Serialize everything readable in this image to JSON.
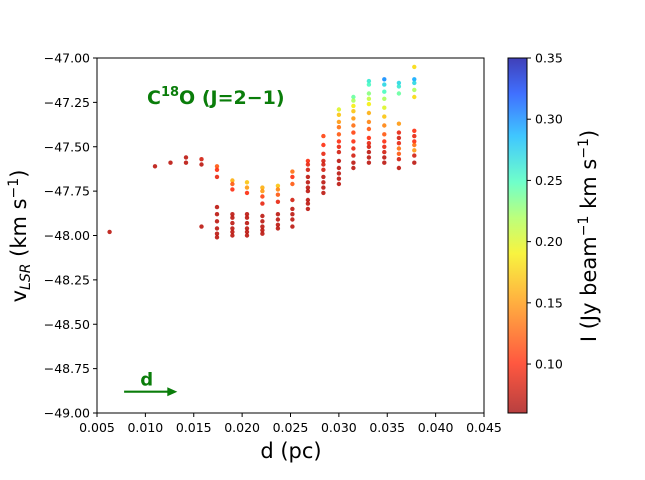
{
  "chart_data": {
    "type": "scatter",
    "xlabel": "d (pc)",
    "ylabel_main": "v",
    "ylabel_sub": "LSR",
    "ylabel_unit": " (km s",
    "ylabel_exp": "−1",
    "ylabel_close": ")",
    "xlim": [
      0.005,
      0.045
    ],
    "ylim": [
      -49.0,
      -47.0
    ],
    "x_ticks": [
      0.005,
      0.01,
      0.015,
      0.02,
      0.025,
      0.03,
      0.035,
      0.04,
      0.045
    ],
    "x_tick_labels": [
      "0.005",
      "0.010",
      "0.015",
      "0.020",
      "0.025",
      "0.030",
      "0.035",
      "0.040",
      "0.045"
    ],
    "y_ticks": [
      -49.0,
      -48.75,
      -48.5,
      -48.25,
      -48.0,
      -47.75,
      -47.5,
      -47.25,
      -47.0
    ],
    "y_tick_labels": [
      "−49.00",
      "−48.75",
      "−48.50",
      "−48.25",
      "−48.00",
      "−47.75",
      "−47.50",
      "−47.25",
      "−47.00"
    ],
    "annotation": {
      "species": "C",
      "isotope": "18",
      "rest": "O (J=2−1)"
    },
    "arrow_label": "d",
    "arrow_from": [
      0.0078,
      -48.88
    ],
    "arrow_to": [
      0.0133,
      -48.88
    ],
    "colorbar": {
      "label_pre": "I (Jy beam",
      "label_exp1": "−1",
      "label_mid": " km s",
      "label_exp2": "−1",
      "label_post": ")",
      "range": [
        0.06,
        0.35
      ],
      "ticks": [
        0.1,
        0.15,
        0.2,
        0.25,
        0.3,
        0.35
      ],
      "tick_labels": [
        "0.10",
        "0.15",
        "0.20",
        "0.25",
        "0.30",
        "0.35"
      ],
      "colormap": "jet (reversed, alpha 0.75)"
    },
    "points": [
      [
        0.0063,
        -47.98,
        0.07
      ],
      [
        0.011,
        -47.61,
        0.07
      ],
      [
        0.0126,
        -47.59,
        0.07
      ],
      [
        0.0142,
        -47.56,
        0.07
      ],
      [
        0.0142,
        -47.59,
        0.07
      ],
      [
        0.0158,
        -47.57,
        0.08
      ],
      [
        0.0158,
        -47.6,
        0.07
      ],
      [
        0.0158,
        -47.95,
        0.07
      ],
      [
        0.0174,
        -47.61,
        0.12
      ],
      [
        0.0174,
        -47.63,
        0.1
      ],
      [
        0.0174,
        -47.67,
        0.09
      ],
      [
        0.0174,
        -47.84,
        0.07
      ],
      [
        0.0174,
        -47.88,
        0.07
      ],
      [
        0.0174,
        -47.92,
        0.07
      ],
      [
        0.0174,
        -47.96,
        0.07
      ],
      [
        0.0174,
        -47.99,
        0.07
      ],
      [
        0.0174,
        -48.01,
        0.07
      ],
      [
        0.019,
        -47.69,
        0.16
      ],
      [
        0.019,
        -47.71,
        0.12
      ],
      [
        0.019,
        -47.74,
        0.1
      ],
      [
        0.019,
        -47.88,
        0.07
      ],
      [
        0.019,
        -47.9,
        0.07
      ],
      [
        0.019,
        -47.93,
        0.07
      ],
      [
        0.019,
        -47.96,
        0.07
      ],
      [
        0.019,
        -47.98,
        0.07
      ],
      [
        0.019,
        -48.0,
        0.07
      ],
      [
        0.0205,
        -47.7,
        0.17
      ],
      [
        0.0205,
        -47.73,
        0.15
      ],
      [
        0.0205,
        -47.76,
        0.1
      ],
      [
        0.0205,
        -47.88,
        0.07
      ],
      [
        0.0205,
        -47.9,
        0.07
      ],
      [
        0.0205,
        -47.93,
        0.07
      ],
      [
        0.0205,
        -47.96,
        0.07
      ],
      [
        0.0205,
        -47.98,
        0.07
      ],
      [
        0.0205,
        -48.0,
        0.07
      ],
      [
        0.0221,
        -47.73,
        0.16
      ],
      [
        0.0221,
        -47.75,
        0.15
      ],
      [
        0.0221,
        -47.78,
        0.11
      ],
      [
        0.0221,
        -47.82,
        0.09
      ],
      [
        0.0221,
        -47.89,
        0.07
      ],
      [
        0.0221,
        -47.92,
        0.07
      ],
      [
        0.0221,
        -47.95,
        0.07
      ],
      [
        0.0221,
        -47.97,
        0.07
      ],
      [
        0.0221,
        -47.99,
        0.07
      ],
      [
        0.0237,
        -47.72,
        0.17
      ],
      [
        0.0237,
        -47.74,
        0.14
      ],
      [
        0.0237,
        -47.77,
        0.12
      ],
      [
        0.0237,
        -47.81,
        0.09
      ],
      [
        0.0237,
        -47.88,
        0.07
      ],
      [
        0.0237,
        -47.91,
        0.07
      ],
      [
        0.0237,
        -47.94,
        0.07
      ],
      [
        0.0237,
        -47.96,
        0.07
      ],
      [
        0.0252,
        -47.64,
        0.13
      ],
      [
        0.0252,
        -47.67,
        0.1
      ],
      [
        0.0252,
        -47.71,
        0.12
      ],
      [
        0.0252,
        -47.8,
        0.08
      ],
      [
        0.0252,
        -47.85,
        0.07
      ],
      [
        0.0252,
        -47.88,
        0.07
      ],
      [
        0.0252,
        -47.91,
        0.07
      ],
      [
        0.0252,
        -47.95,
        0.07
      ],
      [
        0.0268,
        -47.58,
        0.1
      ],
      [
        0.0268,
        -47.6,
        0.09
      ],
      [
        0.0268,
        -47.63,
        0.08
      ],
      [
        0.0268,
        -47.67,
        0.07
      ],
      [
        0.0268,
        -47.7,
        0.07
      ],
      [
        0.0268,
        -47.73,
        0.07
      ],
      [
        0.0268,
        -47.75,
        0.07
      ],
      [
        0.0268,
        -47.8,
        0.07
      ],
      [
        0.0268,
        -47.82,
        0.07
      ],
      [
        0.0268,
        -47.85,
        0.07
      ],
      [
        0.0284,
        -47.44,
        0.11
      ],
      [
        0.0284,
        -47.49,
        0.1
      ],
      [
        0.0284,
        -47.54,
        0.09
      ],
      [
        0.0284,
        -47.58,
        0.08
      ],
      [
        0.0284,
        -47.6,
        0.08
      ],
      [
        0.0284,
        -47.63,
        0.08
      ],
      [
        0.0284,
        -47.67,
        0.07
      ],
      [
        0.0284,
        -47.7,
        0.07
      ],
      [
        0.0284,
        -47.73,
        0.07
      ],
      [
        0.0284,
        -47.76,
        0.07
      ],
      [
        0.03,
        -47.29,
        0.2
      ],
      [
        0.03,
        -47.32,
        0.17
      ],
      [
        0.03,
        -47.36,
        0.15
      ],
      [
        0.03,
        -47.39,
        0.13
      ],
      [
        0.03,
        -47.43,
        0.12
      ],
      [
        0.03,
        -47.47,
        0.1
      ],
      [
        0.03,
        -47.5,
        0.09
      ],
      [
        0.03,
        -47.53,
        0.08
      ],
      [
        0.03,
        -47.58,
        0.07
      ],
      [
        0.03,
        -47.62,
        0.07
      ],
      [
        0.03,
        -47.65,
        0.07
      ],
      [
        0.03,
        -47.68,
        0.07
      ],
      [
        0.03,
        -47.71,
        0.07
      ],
      [
        0.0315,
        -47.22,
        0.24
      ],
      [
        0.0315,
        -47.24,
        0.22
      ],
      [
        0.0315,
        -47.27,
        0.19
      ],
      [
        0.0315,
        -47.3,
        0.17
      ],
      [
        0.0315,
        -47.34,
        0.15
      ],
      [
        0.0315,
        -47.38,
        0.13
      ],
      [
        0.0315,
        -47.42,
        0.11
      ],
      [
        0.0315,
        -47.47,
        0.1
      ],
      [
        0.0315,
        -47.51,
        0.09
      ],
      [
        0.0315,
        -47.55,
        0.08
      ],
      [
        0.0315,
        -47.59,
        0.07
      ],
      [
        0.0315,
        -47.62,
        0.07
      ],
      [
        0.0331,
        -47.13,
        0.26
      ],
      [
        0.0331,
        -47.15,
        0.25
      ],
      [
        0.0331,
        -47.2,
        0.23
      ],
      [
        0.0331,
        -47.23,
        0.21
      ],
      [
        0.0331,
        -47.26,
        0.19
      ],
      [
        0.0331,
        -47.31,
        0.16
      ],
      [
        0.0331,
        -47.36,
        0.14
      ],
      [
        0.0331,
        -47.4,
        0.12
      ],
      [
        0.0331,
        -47.45,
        0.1
      ],
      [
        0.0331,
        -47.48,
        0.09
      ],
      [
        0.0331,
        -47.5,
        0.08
      ],
      [
        0.0331,
        -47.53,
        0.07
      ],
      [
        0.0331,
        -47.56,
        0.07
      ],
      [
        0.0331,
        -47.59,
        0.07
      ],
      [
        0.0347,
        -47.12,
        0.3
      ],
      [
        0.0347,
        -47.15,
        0.27
      ],
      [
        0.0347,
        -47.19,
        0.25
      ],
      [
        0.0347,
        -47.23,
        0.22
      ],
      [
        0.0347,
        -47.28,
        0.2
      ],
      [
        0.0347,
        -47.33,
        0.17
      ],
      [
        0.0347,
        -47.38,
        0.14
      ],
      [
        0.0347,
        -47.43,
        0.12
      ],
      [
        0.0347,
        -47.47,
        0.1
      ],
      [
        0.0347,
        -47.5,
        0.09
      ],
      [
        0.0347,
        -47.53,
        0.08
      ],
      [
        0.0347,
        -47.56,
        0.07
      ],
      [
        0.0347,
        -47.59,
        0.07
      ],
      [
        0.0362,
        -47.14,
        0.27
      ],
      [
        0.0362,
        -47.16,
        0.26
      ],
      [
        0.0362,
        -47.2,
        0.24
      ],
      [
        0.0362,
        -47.37,
        0.15
      ],
      [
        0.0362,
        -47.42,
        0.09
      ],
      [
        0.0362,
        -47.45,
        0.08
      ],
      [
        0.0362,
        -47.48,
        0.09
      ],
      [
        0.0362,
        -47.51,
        0.13
      ],
      [
        0.0362,
        -47.54,
        0.12
      ],
      [
        0.0362,
        -47.57,
        0.08
      ],
      [
        0.0362,
        -47.62,
        0.07
      ],
      [
        0.0378,
        -47.05,
        0.18
      ],
      [
        0.0378,
        -47.12,
        0.29
      ],
      [
        0.0378,
        -47.14,
        0.27
      ],
      [
        0.0378,
        -47.18,
        0.22
      ],
      [
        0.0378,
        -47.22,
        0.18
      ],
      [
        0.0378,
        -47.41,
        0.1
      ],
      [
        0.0378,
        -47.44,
        0.09
      ],
      [
        0.0378,
        -47.47,
        0.1
      ],
      [
        0.0378,
        -47.49,
        0.13
      ],
      [
        0.0378,
        -47.52,
        0.15
      ],
      [
        0.0378,
        -47.55,
        0.08
      ],
      [
        0.0378,
        -47.59,
        0.07
      ]
    ]
  }
}
